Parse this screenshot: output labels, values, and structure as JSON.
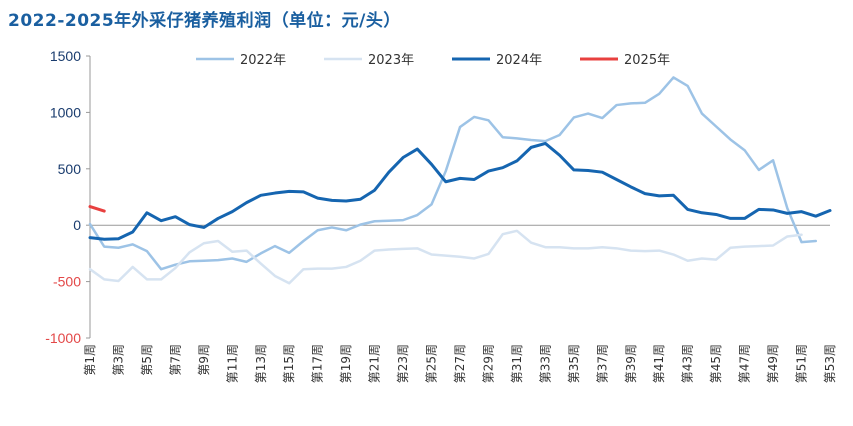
{
  "chart_data": {
    "type": "line",
    "title": "2022-2025年外采仔猪养殖利润（单位：元/头）",
    "xlabel": "",
    "ylabel": "",
    "ylim": [
      -1000,
      1500
    ],
    "yticks": [
      1500,
      1000,
      500,
      0,
      -500,
      -1000
    ],
    "grid": false,
    "legend_position": "top",
    "x": [
      "第1周",
      "第2周",
      "第3周",
      "第4周",
      "第5周",
      "第6周",
      "第7周",
      "第8周",
      "第9周",
      "第10周",
      "第11周",
      "第12周",
      "第13周",
      "第14周",
      "第15周",
      "第16周",
      "第17周",
      "第18周",
      "第19周",
      "第20周",
      "第21周",
      "第22周",
      "第23周",
      "第24周",
      "第25周",
      "第26周",
      "第27周",
      "第28周",
      "第29周",
      "第30周",
      "第31周",
      "第32周",
      "第33周",
      "第34周",
      "第35周",
      "第36周",
      "第37周",
      "第38周",
      "第39周",
      "第40周",
      "第41周",
      "第42周",
      "第43周",
      "第44周",
      "第45周",
      "第46周",
      "第47周",
      "第48周",
      "第49周",
      "第50周",
      "第51周",
      "第52周",
      "第53周"
    ],
    "x_tick_labels": [
      "第1周",
      "第3周",
      "第5周",
      "第7周",
      "第9周",
      "第11周",
      "第13周",
      "第15周",
      "第17周",
      "第19周",
      "第21周",
      "第23周",
      "第25周",
      "第27周",
      "第29周",
      "第31周",
      "第33周",
      "第35周",
      "第37周",
      "第39周",
      "第41周",
      "第43周",
      "第45周",
      "第47周",
      "第49周",
      "第51周",
      "第53周"
    ],
    "series": [
      {
        "name": "2022年",
        "color": "#9dc3e6",
        "width": 2.5,
        "values": [
          10,
          -190,
          -200,
          -170,
          -230,
          -390,
          -350,
          -320,
          -315,
          -310,
          -295,
          -325,
          -250,
          -185,
          -245,
          -140,
          -45,
          -20,
          -45,
          5,
          35,
          40,
          45,
          90,
          185,
          480,
          870,
          960,
          930,
          780,
          770,
          755,
          745,
          800,
          955,
          990,
          950,
          1065,
          1080,
          1085,
          1165,
          1310,
          1235,
          990,
          875,
          760,
          665,
          490,
          575,
          150,
          -150,
          -140,
          null
        ]
      },
      {
        "name": "2023年",
        "color": "#d6e3f1",
        "width": 2.5,
        "values": [
          -390,
          -480,
          -495,
          -370,
          -480,
          -480,
          -380,
          -240,
          -160,
          -140,
          -235,
          -225,
          -340,
          -450,
          -515,
          -390,
          -385,
          -385,
          -370,
          -315,
          -225,
          -215,
          -210,
          -205,
          -260,
          -270,
          -280,
          -295,
          -255,
          -80,
          -50,
          -155,
          -195,
          -195,
          -205,
          -205,
          -195,
          -205,
          -225,
          -230,
          -225,
          -260,
          -315,
          -295,
          -305,
          -200,
          -190,
          -185,
          -180,
          -100,
          -85,
          null,
          null
        ]
      },
      {
        "name": "2024年",
        "color": "#1565b0",
        "width": 3,
        "values": [
          -110,
          -125,
          -120,
          -60,
          110,
          40,
          75,
          5,
          -20,
          60,
          120,
          200,
          265,
          285,
          300,
          295,
          240,
          220,
          215,
          230,
          310,
          470,
          600,
          675,
          540,
          385,
          415,
          405,
          480,
          510,
          570,
          690,
          725,
          620,
          490,
          485,
          470,
          405,
          340,
          280,
          260,
          265,
          140,
          110,
          95,
          60,
          60,
          140,
          135,
          105,
          120,
          80,
          130
        ]
      },
      {
        "name": "2025年",
        "color": "#e8403f",
        "width": 3,
        "values": [
          165,
          125,
          null,
          null,
          null,
          null,
          null,
          null,
          null,
          null,
          null,
          null,
          null,
          null,
          null,
          null,
          null,
          null,
          null,
          null,
          null,
          null,
          null,
          null,
          null,
          null,
          null,
          null,
          null,
          null,
          null,
          null,
          null,
          null,
          null,
          null,
          null,
          null,
          null,
          null,
          null,
          null,
          null,
          null,
          null,
          null,
          null,
          null,
          null,
          null,
          null,
          null,
          null
        ]
      }
    ],
    "axis_colors": {
      "positive": "#1a3c6e",
      "negative": "#e34848",
      "axis": "#999999"
    }
  }
}
